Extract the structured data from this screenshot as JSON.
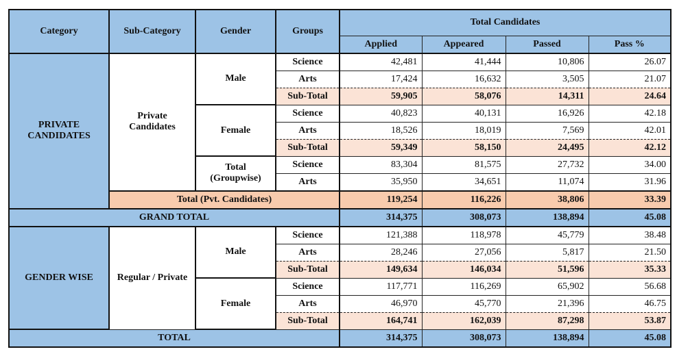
{
  "colors": {
    "header_blue": "#9dc3e6",
    "subtotal": "#fbe3d6",
    "pvt_total": "#f8cbad"
  },
  "headers": {
    "category": "Category",
    "sub_category": "Sub-Category",
    "gender": "Gender",
    "groups": "Groups",
    "total_candidates": "Total Candidates",
    "applied": "Applied",
    "appeared": "Appeared",
    "passed": "Passed",
    "pass_pct": "Pass %"
  },
  "private": {
    "category": "PRIVATE CANDIDATES",
    "sub_category": "Private Candidates",
    "blocks": [
      {
        "gender": "Male",
        "rows": [
          {
            "group": "Science",
            "values": [
              "42,481",
              "41,444",
              "10,806",
              "26.07"
            ]
          },
          {
            "group": "Arts",
            "values": [
              "17,424",
              "16,632",
              "3,505",
              "21.07"
            ]
          },
          {
            "group": "Sub-Total",
            "values": [
              "59,905",
              "58,076",
              "14,311",
              "24.64"
            ],
            "subtotal": true
          }
        ]
      },
      {
        "gender": "Female",
        "rows": [
          {
            "group": "Science",
            "values": [
              "40,823",
              "40,131",
              "16,926",
              "42.18"
            ]
          },
          {
            "group": "Arts",
            "values": [
              "18,526",
              "18,019",
              "7,569",
              "42.01"
            ]
          },
          {
            "group": "Sub-Total",
            "values": [
              "59,349",
              "58,150",
              "24,495",
              "42.12"
            ],
            "subtotal": true
          }
        ]
      },
      {
        "gender": "Total (Groupwise)",
        "rows": [
          {
            "group": "Science",
            "values": [
              "83,304",
              "81,575",
              "27,732",
              "34.00"
            ]
          },
          {
            "group": "Arts",
            "values": [
              "35,950",
              "34,651",
              "11,074",
              "31.96"
            ]
          }
        ]
      }
    ],
    "total_label": "Total (Pvt. Candidates)",
    "total_values": [
      "119,254",
      "116,226",
      "38,806",
      "33.39"
    ]
  },
  "grand_total": {
    "label": "GRAND TOTAL",
    "values": [
      "314,375",
      "308,073",
      "138,894",
      "45.08"
    ]
  },
  "gender_wise": {
    "category": "GENDER WISE",
    "sub_category": "Regular / Private",
    "blocks": [
      {
        "gender": "Male",
        "rows": [
          {
            "group": "Science",
            "values": [
              "121,388",
              "118,978",
              "45,779",
              "38.48"
            ]
          },
          {
            "group": "Arts",
            "values": [
              "28,246",
              "27,056",
              "5,817",
              "21.50"
            ]
          },
          {
            "group": "Sub-Total",
            "values": [
              "149,634",
              "146,034",
              "51,596",
              "35.33"
            ],
            "subtotal": true
          }
        ]
      },
      {
        "gender": "Female",
        "rows": [
          {
            "group": "Science",
            "values": [
              "117,771",
              "116,269",
              "65,902",
              "56.68"
            ]
          },
          {
            "group": "Arts",
            "values": [
              "46,970",
              "45,770",
              "21,396",
              "46.75"
            ]
          },
          {
            "group": "Sub-Total",
            "values": [
              "164,741",
              "162,039",
              "87,298",
              "53.87"
            ],
            "subtotal": true
          }
        ]
      }
    ]
  },
  "total": {
    "label": "TOTAL",
    "values": [
      "314,375",
      "308,073",
      "138,894",
      "45.08"
    ]
  }
}
